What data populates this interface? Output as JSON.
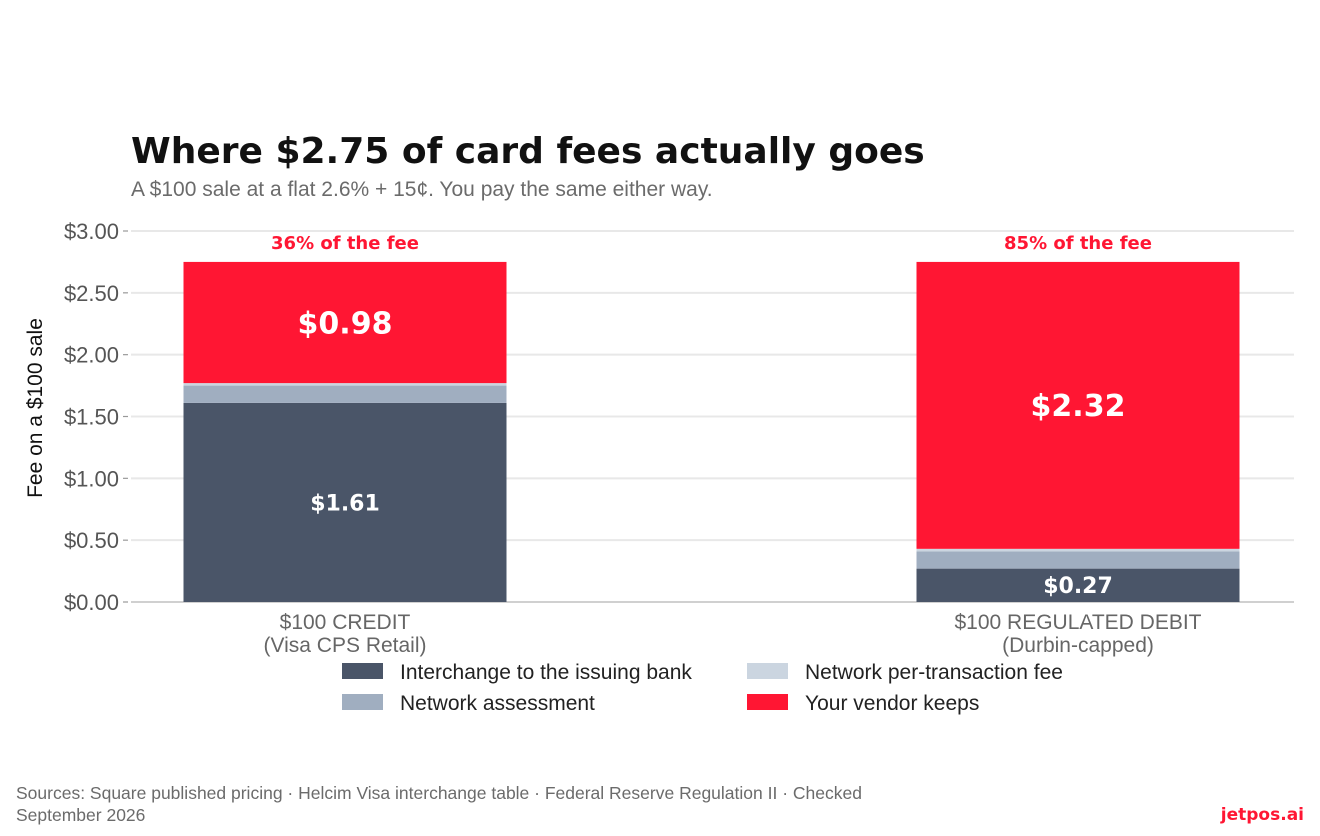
{
  "chart_data": {
    "type": "bar",
    "stacked": true,
    "title": "Where $2.75 of card fees actually goes",
    "subtitle": "A $100 sale at a flat 2.6% + 15¢. You pay the same either way.",
    "ylabel": "Fee on a $100 sale",
    "ylim": [
      0,
      3
    ],
    "yticks": [
      "$0.00",
      "$0.50",
      "$1.00",
      "$1.50",
      "$2.00",
      "$2.50",
      "$3.00"
    ],
    "grid": true,
    "legend_position": "bottom",
    "categories": [
      {
        "line1": "$100 CREDIT",
        "line2": "(Visa CPS Retail)",
        "annotation": "36% of the fee"
      },
      {
        "line1": "$100 REGULATED DEBIT",
        "line2": "(Durbin-capped)",
        "annotation": "85% of the fee"
      }
    ],
    "series": [
      {
        "name": "Interchange to the issuing bank",
        "color": "#4a5568",
        "values": [
          1.61,
          0.27
        ],
        "labels": [
          "$1.61",
          "$0.27"
        ]
      },
      {
        "name": "Network assessment",
        "color": "#a0aec0",
        "values": [
          0.14,
          0.14
        ],
        "labels": [
          "",
          ""
        ]
      },
      {
        "name": "Network per-transaction fee",
        "color": "#cbd5e0",
        "values": [
          0.02,
          0.02
        ],
        "labels": [
          "",
          ""
        ]
      },
      {
        "name": "Your vendor keeps",
        "color": "#ff1633",
        "values": [
          0.98,
          2.32
        ],
        "labels": [
          "$0.98",
          "$2.32"
        ]
      }
    ],
    "legend_order": [
      0,
      2,
      1,
      3
    ]
  },
  "footer": {
    "sources": "Sources: Square published pricing · Helcim Visa interchange table · Federal Reserve Regulation II · Checked September 2026",
    "brand": "jetpos.ai"
  }
}
